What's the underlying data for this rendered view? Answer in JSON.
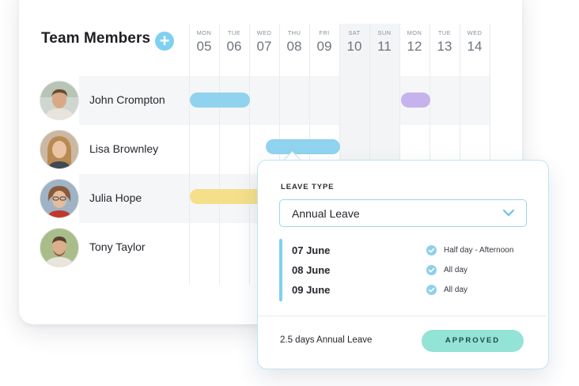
{
  "header": {
    "title": "Team Members",
    "add_icon": "plus-circle-icon",
    "add_symbol": "+"
  },
  "days": [
    {
      "name": "MON",
      "num": "05"
    },
    {
      "name": "TUE",
      "num": "06"
    },
    {
      "name": "WED",
      "num": "07"
    },
    {
      "name": "THU",
      "num": "08"
    },
    {
      "name": "FRI",
      "num": "09"
    },
    {
      "name": "SAT",
      "num": "10"
    },
    {
      "name": "SUN",
      "num": "11"
    },
    {
      "name": "MON",
      "num": "12"
    },
    {
      "name": "TUE",
      "num": "13"
    },
    {
      "name": "WED",
      "num": "14"
    }
  ],
  "members": [
    {
      "name": "John Crompton",
      "avatar": "avatar-photo"
    },
    {
      "name": "Lisa Brownley",
      "avatar": "avatar-photo"
    },
    {
      "name": "Julia Hope",
      "avatar": "avatar-photo"
    },
    {
      "name": "Tony Taylor",
      "avatar": "avatar-photo"
    }
  ],
  "colors": {
    "accent": "#7fd1ef",
    "leave_blue": "#8fd3ef",
    "leave_purple": "#c6b3ee",
    "leave_yellow": "#f5df8a",
    "approved": "#93e3d6"
  },
  "popover": {
    "leave_type_label": "LEAVE TYPE",
    "leave_type_value": "Annual Leave",
    "dropdown_icon": "chevron-down-icon",
    "dates": [
      {
        "date": "07 June",
        "duration": "Half day - Afternoon",
        "icon": "check-circle-icon"
      },
      {
        "date": "08 June",
        "duration": "All day",
        "icon": "check-circle-icon"
      },
      {
        "date": "09 June",
        "duration": "All day",
        "icon": "check-circle-icon"
      }
    ],
    "summary": "2.5 days Annual Leave",
    "status": "APPROVED"
  }
}
